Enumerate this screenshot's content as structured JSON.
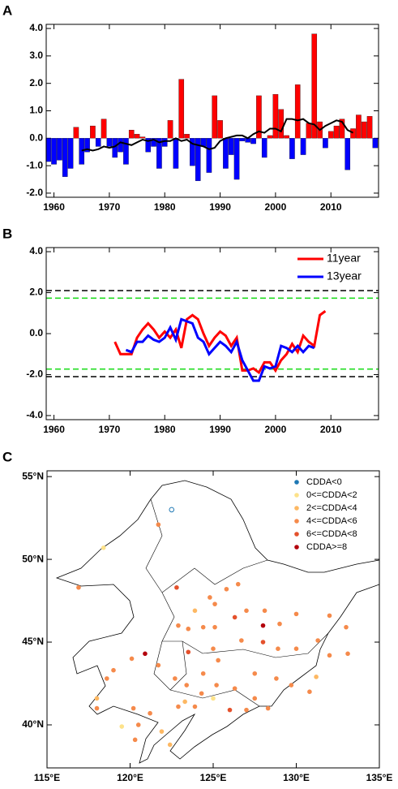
{
  "chart_data": [
    {
      "type": "bar",
      "panel_label": "A",
      "x": [
        1959,
        1960,
        1961,
        1962,
        1963,
        1964,
        1965,
        1966,
        1967,
        1968,
        1969,
        1970,
        1971,
        1972,
        1973,
        1974,
        1975,
        1976,
        1977,
        1978,
        1979,
        1980,
        1981,
        1982,
        1983,
        1984,
        1985,
        1986,
        1987,
        1988,
        1989,
        1990,
        1991,
        1992,
        1993,
        1994,
        1995,
        1996,
        1997,
        1998,
        1999,
        2000,
        2001,
        2002,
        2003,
        2004,
        2005,
        2006,
        2007,
        2008,
        2009,
        2010,
        2011,
        2012,
        2013,
        2014,
        2015,
        2016,
        2017,
        2018
      ],
      "values": [
        -0.85,
        -0.95,
        -0.8,
        -1.4,
        -1.1,
        0.4,
        -0.95,
        -0.5,
        0.45,
        -0.3,
        0.7,
        -0.3,
        -0.7,
        -0.5,
        -0.95,
        0.3,
        0.15,
        0.05,
        -0.5,
        -0.3,
        -1.1,
        -0.3,
        0.65,
        -1.1,
        2.15,
        0.15,
        -1.0,
        -1.55,
        -0.3,
        -1.25,
        1.55,
        0.65,
        -1.1,
        -0.6,
        -1.5,
        -0.1,
        -0.15,
        -0.2,
        1.55,
        -0.7,
        0.1,
        1.6,
        1.05,
        0.1,
        -0.75,
        1.95,
        -0.6,
        0.55,
        3.8,
        0.6,
        -0.35,
        0.25,
        0.45,
        0.7,
        -1.15,
        0.35,
        0.85,
        0.6,
        0.8,
        -0.35
      ],
      "positive_color": "#ff0000",
      "negative_color": "#0000ff",
      "line": {
        "color": "#000000",
        "x": [
          1965,
          1966,
          1967,
          1968,
          1969,
          1970,
          1971,
          1972,
          1973,
          1974,
          1975,
          1976,
          1977,
          1978,
          1979,
          1980,
          1981,
          1982,
          1983,
          1984,
          1985,
          1986,
          1987,
          1988,
          1989,
          1990,
          1991,
          1992,
          1993,
          1994,
          1995,
          1996,
          1997,
          1998,
          1999,
          2000,
          2001,
          2002,
          2003,
          2004,
          2005,
          2006,
          2007,
          2008,
          2009,
          2010,
          2011,
          2012,
          2013,
          2014
        ],
        "values": [
          -0.45,
          -0.4,
          -0.45,
          -0.4,
          -0.3,
          -0.35,
          -0.3,
          -0.15,
          -0.2,
          -0.25,
          -0.15,
          -0.05,
          -0.1,
          -0.05,
          -0.15,
          -0.1,
          -0.1,
          0.0,
          -0.1,
          -0.05,
          -0.2,
          -0.25,
          -0.3,
          -0.4,
          -0.35,
          -0.1,
          0.0,
          0.05,
          0.1,
          0.1,
          0.0,
          0.15,
          0.25,
          0.2,
          0.35,
          0.35,
          0.25,
          0.7,
          0.7,
          0.65,
          0.7,
          0.55,
          0.5,
          0.3,
          0.45,
          0.55,
          0.65,
          0.6,
          0.3,
          0.2
        ]
      },
      "xlim": [
        1958.6,
        2018.6
      ],
      "xticks": [
        1960,
        1970,
        1980,
        1990,
        2000,
        2010
      ],
      "ylim": [
        -2.15,
        4.15
      ],
      "yticks": [
        {
          "value": 4,
          "label": "4.0"
        },
        {
          "value": 3,
          "label": "3.0"
        },
        {
          "value": 2,
          "label": "2.0"
        },
        {
          "value": 1,
          "label": "1.0"
        },
        {
          "value": 0,
          "label": "0.0"
        },
        {
          "value": -1,
          "label": "-1.0"
        },
        {
          "value": -2,
          "label": "-2.0"
        }
      ]
    },
    {
      "type": "line",
      "panel_label": "B",
      "series": [
        {
          "name": "11year",
          "color": "#ff0000",
          "x": [
            1971,
            1972,
            1973,
            1974,
            1975,
            1976,
            1977,
            1978,
            1979,
            1980,
            1981,
            1982,
            1983,
            1984,
            1985,
            1986,
            1987,
            1988,
            1989,
            1990,
            1991,
            1992,
            1993,
            1994,
            1995,
            1996,
            1997,
            1998,
            1999,
            2000,
            2001,
            2002,
            2003,
            2004,
            2005,
            2006,
            2007,
            2008,
            2009
          ],
          "values": [
            -0.4,
            -1.0,
            -1.0,
            -1.0,
            -0.2,
            0.2,
            0.5,
            0.2,
            -0.2,
            0.1,
            -0.2,
            0.2,
            -0.7,
            0.7,
            0.9,
            0.7,
            0.0,
            -0.6,
            -0.2,
            0.1,
            -0.1,
            -0.6,
            -0.2,
            -1.8,
            -1.8,
            -1.7,
            -1.9,
            -1.4,
            -1.4,
            -1.8,
            -1.3,
            -1.0,
            -0.5,
            -0.9,
            -0.1,
            -0.4,
            -0.6,
            0.9,
            1.1
          ]
        },
        {
          "name": "13year",
          "color": "#0000ff",
          "x": [
            1973,
            1974,
            1975,
            1976,
            1977,
            1978,
            1979,
            1980,
            1981,
            1982,
            1983,
            1984,
            1985,
            1986,
            1987,
            1988,
            1989,
            1990,
            1991,
            1992,
            1993,
            1994,
            1995,
            1996,
            1997,
            1998,
            1999,
            2000,
            2001,
            2002,
            2003,
            2004,
            2005,
            2006,
            2007
          ],
          "values": [
            -0.8,
            -0.9,
            -0.4,
            -0.4,
            -0.1,
            -0.3,
            -0.4,
            -0.2,
            0.3,
            -0.3,
            0.7,
            0.6,
            0.5,
            -0.2,
            -0.4,
            -1.0,
            -0.7,
            -0.4,
            -0.6,
            -0.9,
            -0.4,
            -1.3,
            -1.8,
            -2.3,
            -2.3,
            -1.6,
            -1.7,
            -1.6,
            -0.6,
            -0.7,
            -0.9,
            -0.6,
            -0.9,
            -0.6,
            -0.7
          ]
        }
      ],
      "hlines": [
        {
          "value": 2.1,
          "color": "#000000"
        },
        {
          "value": -2.1,
          "color": "#000000"
        },
        {
          "value": 1.73,
          "color": "#22dd22"
        },
        {
          "value": -1.73,
          "color": "#22dd22"
        }
      ],
      "legend": "upper right",
      "xlim": [
        1958.6,
        2018.6
      ],
      "xticks": [
        1960,
        1970,
        1980,
        1990,
        2000,
        2010
      ],
      "ylim": [
        -4.2,
        4.2
      ],
      "yticks": [
        {
          "value": 4,
          "label": "4.0"
        },
        {
          "value": 2,
          "label": "2.0"
        },
        {
          "value": 0,
          "label": "0.0"
        },
        {
          "value": -2,
          "label": "-2.0"
        },
        {
          "value": -4,
          "label": "-4.0"
        }
      ]
    },
    {
      "type": "scatter",
      "panel_label": "C",
      "series": [
        {
          "name": "CDDA<0",
          "color": "#1f78b4",
          "filled": false,
          "x": [
            122.5
          ],
          "values": [
            53.0
          ]
        },
        {
          "name": "0<=CDDA<2",
          "color": "#fde28a",
          "filled": true,
          "x": [
            118.4,
            119.5,
            125.0
          ],
          "values": [
            50.7,
            39.9,
            41.6
          ]
        },
        {
          "name": "2<=CDDA<4",
          "color": "#fdb863",
          "filled": true,
          "x": [
            123.9,
            122.4,
            121.9,
            131.2,
            118.0,
            123.3
          ],
          "values": [
            46.9,
            38.8,
            39.6,
            42.9,
            41.6,
            41.4
          ]
        },
        {
          "name": "4<=CDDA<6",
          "color": "#f58a4b",
          "filled": true,
          "x": [
            121.7,
            116.9,
            124.8,
            125.1,
            125.8,
            126.5,
            122.9,
            123.5,
            124.4,
            125.1,
            127.0,
            128.1,
            129.0,
            130.0,
            126.7,
            128.9,
            130.0,
            131.3,
            132.0,
            132.0,
            133.1,
            133.0,
            120.1,
            119.0,
            121.7,
            125.0,
            125.3,
            124.4,
            122.7,
            123.4,
            124.3,
            125.2,
            126.3,
            127.5,
            128.8,
            129.7,
            130.8,
            127.5,
            128.3,
            127.0,
            123.9,
            122.9,
            121.2,
            120.2,
            120.5,
            120.3,
            118.6,
            118.0
          ],
          "values": [
            52.1,
            48.3,
            47.7,
            47.3,
            48.2,
            48.5,
            46.0,
            45.8,
            45.9,
            45.9,
            46.9,
            46.9,
            46.1,
            46.7,
            45.1,
            44.6,
            44.6,
            45.1,
            46.6,
            44.2,
            44.3,
            45.9,
            44.0,
            43.3,
            43.6,
            44.6,
            43.9,
            43.1,
            42.8,
            42.4,
            41.9,
            42.4,
            42.2,
            43.1,
            42.8,
            42.4,
            42.0,
            41.6,
            41.0,
            40.9,
            41.1,
            41.1,
            40.7,
            41.0,
            40.0,
            39.1,
            42.8,
            41.0
          ]
        },
        {
          "name": "6<=CDDA<8",
          "color": "#e4512c",
          "filled": true,
          "x": [
            128.0,
            122.8,
            126.3,
            123.5,
            126.0
          ],
          "values": [
            45.0,
            48.3,
            46.5,
            44.4,
            40.9
          ]
        },
        {
          "name": "CDDA>=8",
          "color": "#b3000c",
          "filled": true,
          "x": [
            120.9,
            128.0
          ],
          "values": [
            44.3,
            46.0
          ]
        }
      ],
      "legend": "upper right",
      "xlim": [
        115,
        135
      ],
      "xticks": [
        {
          "value": 115,
          "label": "115°E"
        },
        {
          "value": 120,
          "label": "120°E"
        },
        {
          "value": 125,
          "label": "125°E"
        },
        {
          "value": 130,
          "label": "130°E"
        },
        {
          "value": 135,
          "label": "135°E"
        }
      ],
      "ylim": [
        37.4,
        55.35
      ],
      "yticks": [
        {
          "value": 40,
          "label": "40°N"
        },
        {
          "value": 45,
          "label": "45°N"
        },
        {
          "value": 50,
          "label": "50°N"
        },
        {
          "value": 55,
          "label": "55°N"
        }
      ]
    }
  ]
}
